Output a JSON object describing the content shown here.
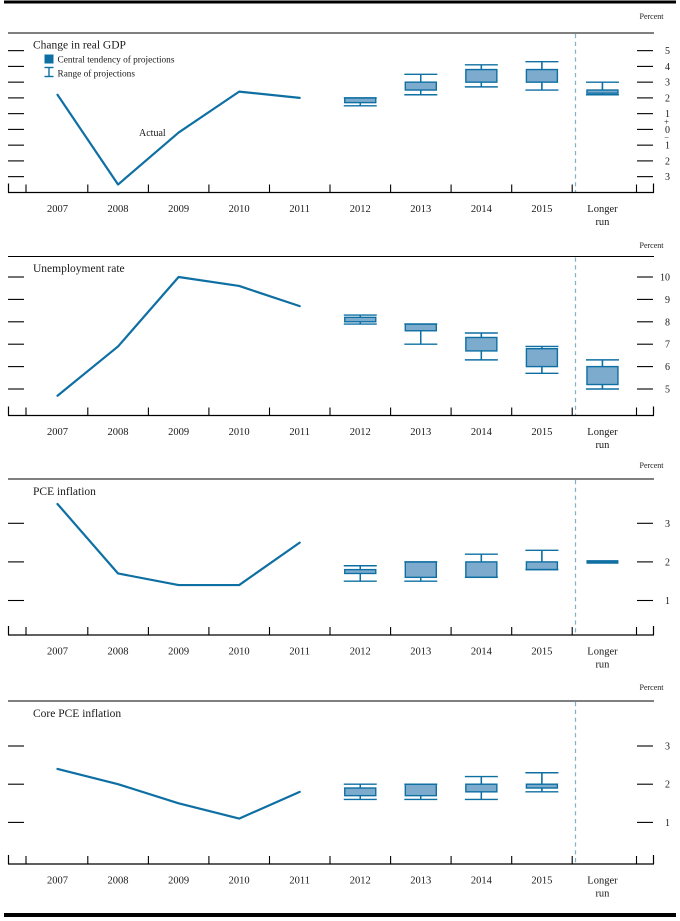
{
  "figure": {
    "unit_label": "Percent",
    "actual_label": "Actual",
    "legend": {
      "central_tendency": "Central tendency of projections",
      "range": "Range of projections"
    },
    "x_categories": [
      "2007",
      "2008",
      "2009",
      "2010",
      "2011",
      "2012",
      "2013",
      "2014",
      "2015",
      "Longer run"
    ],
    "longer_run_lines": [
      "Longer",
      "run"
    ]
  },
  "colors": {
    "line": "#0e6fa3",
    "box_fill": "#7cabcd",
    "box_stroke": "#0e6fa3",
    "legend_square": "#0e6fa3",
    "divider": "#85aec9",
    "axis": "#000000",
    "rule": "#000000",
    "text": "#1a1a1a"
  },
  "chart_data": [
    {
      "type": "line+box",
      "title": "Change in real GDP",
      "ylabel": "Percent",
      "yticks": [
        5,
        4,
        3,
        2,
        1,
        0,
        -1,
        -2,
        -3
      ],
      "ytick_labels": [
        "5",
        "4",
        "3",
        "2",
        "1",
        "0",
        "1",
        "2",
        "3"
      ],
      "sign_markers": [
        {
          "value": 0.5,
          "label": "+"
        },
        {
          "value": -0.5,
          "label": "−"
        }
      ],
      "ylim": [
        -4.0,
        6.1
      ],
      "actual": {
        "years": [
          "2007",
          "2008",
          "2009",
          "2010",
          "2011"
        ],
        "values": [
          2.2,
          -3.5,
          -0.2,
          2.4,
          2.0
        ]
      },
      "projections": [
        {
          "period": "2012",
          "central_tendency": [
            1.7,
            2.0
          ],
          "range": [
            1.5,
            2.0
          ]
        },
        {
          "period": "2013",
          "central_tendency": [
            2.5,
            3.0
          ],
          "range": [
            2.2,
            3.5
          ]
        },
        {
          "period": "2014",
          "central_tendency": [
            3.0,
            3.8
          ],
          "range": [
            2.7,
            4.1
          ]
        },
        {
          "period": "2015",
          "central_tendency": [
            3.0,
            3.8
          ],
          "range": [
            2.5,
            4.3
          ]
        },
        {
          "period": "Longer run",
          "central_tendency": [
            2.3,
            2.5
          ],
          "range": [
            2.2,
            3.0
          ]
        }
      ]
    },
    {
      "type": "line+box",
      "title": "Unemployment rate",
      "ylabel": "Percent",
      "yticks": [
        10,
        9,
        8,
        7,
        6,
        5
      ],
      "ytick_labels": [
        "10",
        "9",
        "8",
        "7",
        "6",
        "5"
      ],
      "sign_markers": [],
      "ylim": [
        3.8,
        10.9
      ],
      "actual": {
        "years": [
          "2007",
          "2008",
          "2009",
          "2010",
          "2011"
        ],
        "values": [
          4.7,
          6.9,
          10.0,
          9.6,
          8.7
        ]
      },
      "projections": [
        {
          "period": "2012",
          "central_tendency": [
            8.0,
            8.2
          ],
          "range": [
            7.9,
            8.3
          ]
        },
        {
          "period": "2013",
          "central_tendency": [
            7.6,
            7.9
          ],
          "range": [
            7.0,
            7.9
          ]
        },
        {
          "period": "2014",
          "central_tendency": [
            6.7,
            7.3
          ],
          "range": [
            6.3,
            7.5
          ]
        },
        {
          "period": "2015",
          "central_tendency": [
            6.0,
            6.8
          ],
          "range": [
            5.7,
            6.9
          ]
        },
        {
          "period": "Longer run",
          "central_tendency": [
            5.2,
            6.0
          ],
          "range": [
            5.0,
            6.3
          ]
        }
      ]
    },
    {
      "type": "line+box",
      "title": "PCE inflation",
      "ylabel": "Percent",
      "yticks": [
        3,
        2,
        1
      ],
      "ytick_labels": [
        "3",
        "2",
        "1"
      ],
      "sign_markers": [],
      "ylim": [
        0.1,
        4.15
      ],
      "actual": {
        "years": [
          "2007",
          "2008",
          "2009",
          "2010",
          "2011"
        ],
        "values": [
          3.5,
          1.7,
          1.4,
          1.4,
          2.5
        ]
      },
      "projections": [
        {
          "period": "2012",
          "central_tendency": [
            1.7,
            1.8
          ],
          "range": [
            1.5,
            1.9
          ]
        },
        {
          "period": "2013",
          "central_tendency": [
            1.6,
            2.0
          ],
          "range": [
            1.5,
            2.0
          ]
        },
        {
          "period": "2014",
          "central_tendency": [
            1.6,
            2.0
          ],
          "range": [
            1.6,
            2.2
          ]
        },
        {
          "period": "2015",
          "central_tendency": [
            1.8,
            2.0
          ],
          "range": [
            1.8,
            2.3
          ]
        },
        {
          "period": "Longer run",
          "value": 2.0
        }
      ]
    },
    {
      "type": "line+box",
      "title": "Core PCE inflation",
      "ylabel": "Percent",
      "yticks": [
        3,
        2,
        1
      ],
      "ytick_labels": [
        "3",
        "2",
        "1"
      ],
      "sign_markers": [],
      "ylim": [
        -0.1,
        4.2
      ],
      "actual": {
        "years": [
          "2007",
          "2008",
          "2009",
          "2010",
          "2011"
        ],
        "values": [
          2.4,
          2.0,
          1.5,
          1.1,
          1.8
        ]
      },
      "projections": [
        {
          "period": "2012",
          "central_tendency": [
            1.7,
            1.9
          ],
          "range": [
            1.6,
            2.0
          ]
        },
        {
          "period": "2013",
          "central_tendency": [
            1.7,
            2.0
          ],
          "range": [
            1.6,
            2.0
          ]
        },
        {
          "period": "2014",
          "central_tendency": [
            1.8,
            2.0
          ],
          "range": [
            1.6,
            2.2
          ]
        },
        {
          "period": "2015",
          "central_tendency": [
            1.9,
            2.0
          ],
          "range": [
            1.8,
            2.3
          ]
        }
      ]
    }
  ]
}
